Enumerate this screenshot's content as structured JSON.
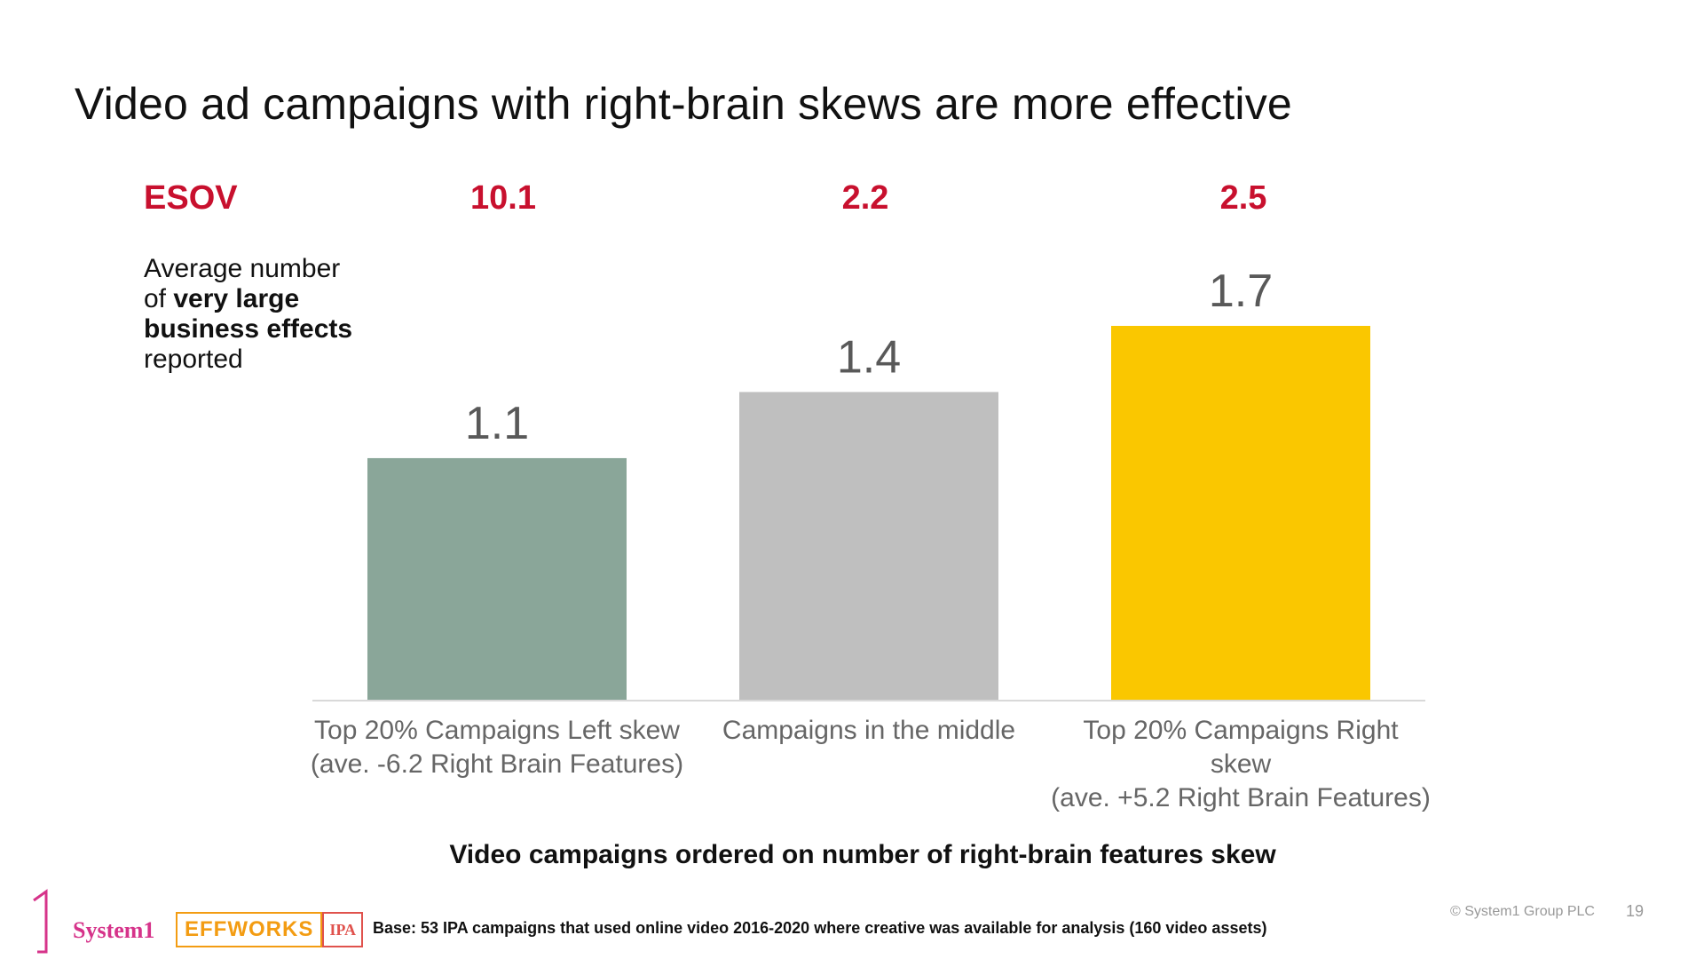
{
  "slide": {
    "title": "Video ad campaigns with right-brain skews are more effective",
    "esov_label": "ESOV",
    "side_note": {
      "line1": "Average number",
      "line2_pre": "of ",
      "line2_bold": "very large",
      "line3_bold": "business effects",
      "line4": "reported"
    },
    "x_title": "Video campaigns ordered on number of right-brain features skew",
    "footer": {
      "brand": "System1",
      "effworks": "EFFWORKS",
      "ipa": "IPA",
      "base": "Base: 53 IPA campaigns that used online video 2016-2020 where creative was available for analysis (160 video assets)",
      "copyright": "© System1 Group PLC",
      "page": "19"
    }
  },
  "chart_data": {
    "type": "bar",
    "categories": [
      "Top 20% Campaigns Left skew (ave. -6.2 Right Brain Features)",
      "Campaigns in the middle",
      "Top 20% Campaigns Right skew (ave. +5.2 Right Brain Features)"
    ],
    "category_lines": [
      [
        "Top 20% Campaigns Left skew",
        "(ave. -6.2 Right Brain Features)"
      ],
      [
        "Campaigns in the middle"
      ],
      [
        "Top 20% Campaigns Right skew",
        "(ave. +5.2 Right Brain Features)"
      ]
    ],
    "values": [
      1.1,
      1.4,
      1.7
    ],
    "data_labels": [
      "1.1",
      "1.4",
      "1.7"
    ],
    "esov": [
      "10.1",
      "2.2",
      "2.5"
    ],
    "colors": [
      "#8aa699",
      "#bfbfbf",
      "#fac700"
    ],
    "ylim": [
      0,
      1.7
    ],
    "grid": false,
    "xlabel": "Video campaigns ordered on number of right-brain features skew",
    "ylabel": ""
  }
}
